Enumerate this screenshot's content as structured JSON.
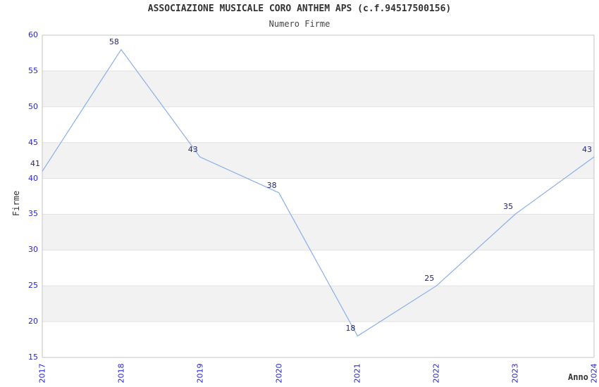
{
  "title": "ASSOCIAZIONE MUSICALE CORO ANTHEM APS (c.f.94517500156)",
  "subtitle": "Numero Firme",
  "chart_data": {
    "type": "line",
    "categories": [
      "2017",
      "2018",
      "2019",
      "2020",
      "2021",
      "2022",
      "2023",
      "2024"
    ],
    "series": [
      {
        "name": "Numero Firme",
        "values": [
          41,
          58,
          43,
          38,
          18,
          25,
          35,
          43
        ]
      }
    ],
    "data_labels": [
      "41",
      "58",
      "43",
      "38",
      "18",
      "25",
      "35",
      "43"
    ],
    "title": "ASSOCIAZIONE MUSICALE CORO ANTHEM APS (c.f.94517500156)",
    "subtitle": "Numero Firme",
    "xlabel": "Anno",
    "ylabel": "Firme",
    "ylim": [
      15,
      60
    ],
    "ytick_step": 5,
    "yticks": [
      15,
      20,
      25,
      30,
      35,
      40,
      45,
      50,
      55,
      60
    ],
    "grid": "horizontal",
    "alternating_bands": true,
    "legend_position": "none"
  },
  "colors": {
    "line": "#8ab0e8",
    "tick_label": "#2727cf",
    "data_label": "#26266e",
    "band_fill": "#f2f2f2",
    "gridline": "#e2e2e2",
    "plot_border": "#c6c6c6",
    "title_text": "#333333",
    "background": "#ffffff"
  }
}
